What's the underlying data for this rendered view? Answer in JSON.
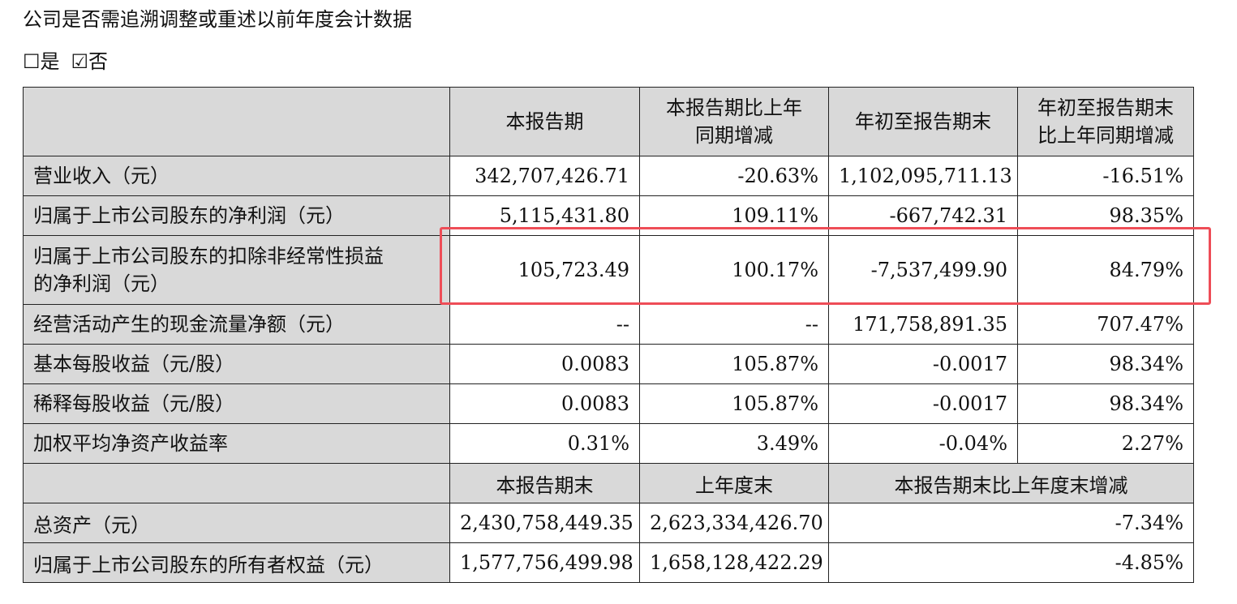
{
  "title": "公司是否需追溯调整或重述以前年度会计数据",
  "checkbox": {
    "yes_symbol": "☐",
    "yes_label": "是",
    "no_symbol": "☑",
    "no_label": "否"
  },
  "colors": {
    "header_bg": "#d9d9d9",
    "highlight_border": "#ee4d57"
  },
  "table": {
    "header": [
      "",
      "本报告期",
      "本报告期比上年\n同期增减",
      "年初至报告期末",
      "年初至报告期末\n比上年同期增减"
    ],
    "rows": [
      [
        "营业收入（元）",
        "342,707,426.71",
        "-20.63%",
        "1,102,095,711.13",
        "-16.51%"
      ],
      [
        "归属于上市公司股东的净利润（元）",
        "5,115,431.80",
        "109.11%",
        "-667,742.31",
        "98.35%"
      ],
      [
        "归属于上市公司股东的扣除非经常性损益\n的净利润（元）",
        "105,723.49",
        "100.17%",
        "-7,537,499.90",
        "84.79%"
      ],
      [
        "经营活动产生的现金流量净额（元）",
        "--",
        "--",
        "171,758,891.35",
        "707.47%"
      ],
      [
        "基本每股收益（元/股）",
        "0.0083",
        "105.87%",
        "-0.0017",
        "98.34%"
      ],
      [
        "稀释每股收益（元/股）",
        "0.0083",
        "105.87%",
        "-0.0017",
        "98.34%"
      ],
      [
        "加权平均净资产收益率",
        "0.31%",
        "3.49%",
        "-0.04%",
        "2.27%"
      ]
    ],
    "header2": [
      "",
      "本报告期末",
      "上年度末",
      "本报告期末比上年度末增减"
    ],
    "rows2": [
      [
        "总资产（元）",
        "2,430,758,449.35",
        "2,623,334,426.70",
        "-7.34%"
      ],
      [
        "归属于上市公司股东的所有者权益（元）",
        "1,577,756,499.98",
        "1,658,128,422.29",
        "-4.85%"
      ]
    ]
  }
}
